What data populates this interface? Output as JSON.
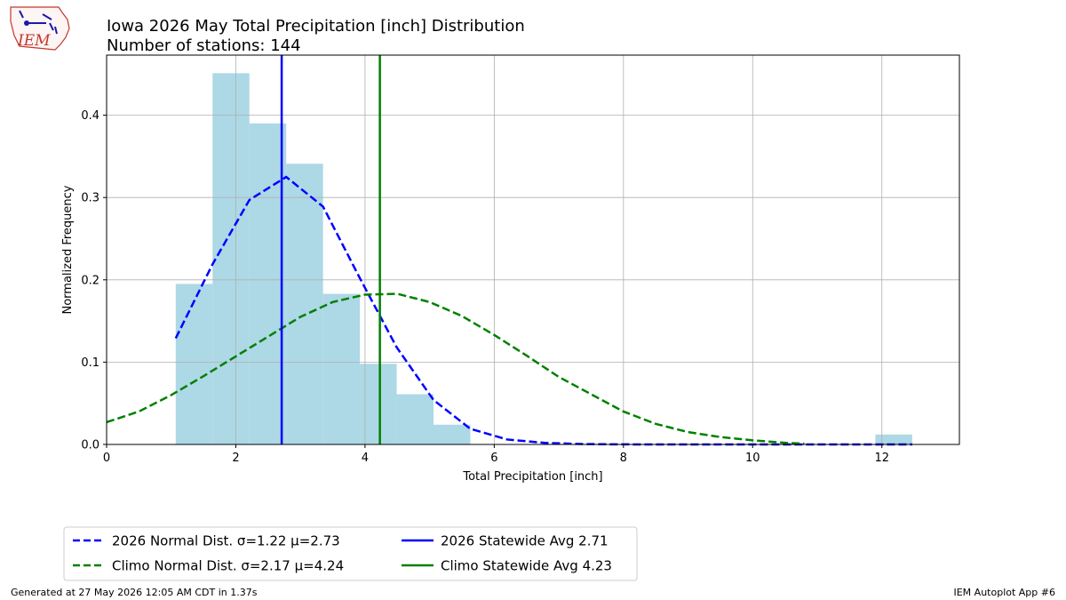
{
  "header": {
    "logo_text": "IEM",
    "title": "Iowa 2026 May Total Precipitation [inch] Distribution",
    "subtitle": "Number of stations: 144"
  },
  "footer": {
    "left": "Generated at 27 May 2026 12:05 AM CDT in 1.37s",
    "right": "IEM Autoplot App #6"
  },
  "colors": {
    "histogram": "#add8e6",
    "year": "#0000ff",
    "climo": "#008000",
    "grid": "#b0b0b0"
  },
  "chart_data": {
    "type": "bar",
    "xlabel": "Total Precipitation [inch]",
    "ylabel": "Normalized Frequency",
    "xlim": [
      0,
      13.2
    ],
    "ylim": [
      0,
      0.473
    ],
    "grid": true,
    "legend_placement": "below-left",
    "xticks": [
      0,
      2,
      4,
      6,
      8,
      10,
      12
    ],
    "yticks": [
      0.0,
      0.1,
      0.2,
      0.3,
      0.4
    ],
    "xtick_labels": [
      "0",
      "2",
      "4",
      "6",
      "8",
      "10",
      "12"
    ],
    "ytick_labels": [
      "0.0",
      "0.1",
      "0.2",
      "0.3",
      "0.4"
    ],
    "histogram": {
      "bin_edges": [
        1.07,
        1.64,
        2.21,
        2.78,
        3.35,
        3.92,
        4.49,
        5.06,
        5.63,
        6.2,
        6.77,
        7.34,
        7.91,
        8.48,
        9.05,
        9.62,
        10.19,
        10.76,
        11.33,
        11.9,
        12.47
      ],
      "values": [
        0.195,
        0.451,
        0.39,
        0.341,
        0.183,
        0.098,
        0.061,
        0.024,
        0,
        0,
        0,
        0,
        0,
        0,
        0,
        0,
        0,
        0,
        0,
        0.012
      ]
    },
    "series": [
      {
        "name": "2026 Normal Dist. σ=1.22 μ=2.73",
        "style": "dashed",
        "color": "#0000ff",
        "x": [
          1.07,
          1.64,
          2.21,
          2.78,
          3.35,
          3.92,
          4.49,
          5.06,
          5.63,
          6.2,
          6.77,
          7.34,
          7.91,
          8.48,
          9.05,
          9.62,
          10.19,
          10.76,
          11.33,
          11.9,
          12.47
        ],
        "y": [
          0.129,
          0.219,
          0.297,
          0.325,
          0.289,
          0.202,
          0.118,
          0.054,
          0.019,
          0.006,
          0.002,
          0.0005,
          0.0001,
          0,
          0,
          0,
          0,
          0,
          0,
          0,
          0
        ]
      },
      {
        "name": "Climo Normal Dist. σ=2.17 μ=4.24",
        "style": "dashed",
        "color": "#008000",
        "x": [
          0,
          0.5,
          1,
          1.5,
          2,
          2.5,
          3,
          3.5,
          4,
          4.5,
          5,
          5.5,
          6,
          6.5,
          7,
          7.5,
          8,
          8.5,
          9,
          9.5,
          10,
          10.5,
          10.8
        ],
        "y": [
          0.027,
          0.04,
          0.06,
          0.083,
          0.107,
          0.131,
          0.155,
          0.173,
          0.182,
          0.183,
          0.173,
          0.156,
          0.133,
          0.108,
          0.082,
          0.061,
          0.04,
          0.025,
          0.015,
          0.009,
          0.005,
          0.002,
          0.001
        ]
      },
      {
        "name": "2026 Statewide Avg 2.71",
        "style": "vline",
        "color": "#0000ff",
        "x": 2.71
      },
      {
        "name": "Climo Statewide Avg 4.23",
        "style": "vline",
        "color": "#008000",
        "x": 4.23
      }
    ]
  }
}
